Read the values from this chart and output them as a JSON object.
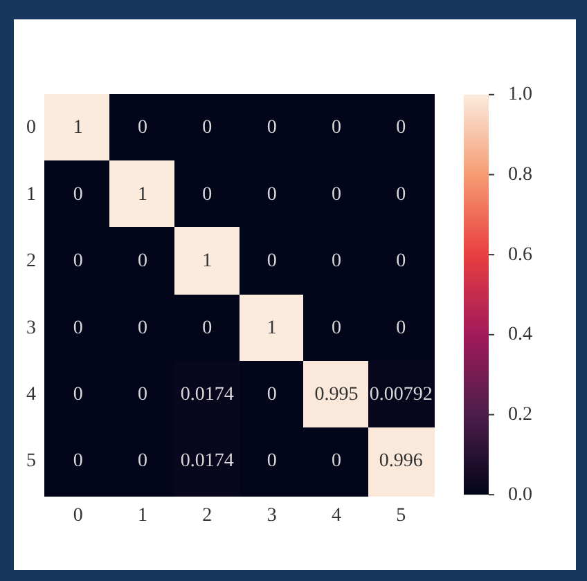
{
  "chart_data": {
    "type": "heatmap",
    "categories": [
      "0",
      "1",
      "2",
      "3",
      "4",
      "5"
    ],
    "y_categories": [
      "0",
      "1",
      "2",
      "3",
      "4",
      "5"
    ],
    "cells": [
      [
        1,
        0,
        0,
        0,
        0,
        0
      ],
      [
        0,
        1,
        0,
        0,
        0,
        0
      ],
      [
        0,
        0,
        1,
        0,
        0,
        0
      ],
      [
        0,
        0,
        0,
        1,
        0,
        0
      ],
      [
        0,
        0,
        0.0174,
        0,
        0.995,
        0.00792
      ],
      [
        0,
        0,
        0.0174,
        0,
        0,
        0.996
      ]
    ],
    "data_labels": true,
    "clim": [
      0,
      1
    ],
    "cticks": [
      {
        "value": 0,
        "label": "0.0"
      },
      {
        "value": 0.2,
        "label": "0.2"
      },
      {
        "value": 0.4,
        "label": "0.4"
      },
      {
        "value": 0.6,
        "label": "0.6"
      },
      {
        "value": 0.8,
        "label": "0.8"
      },
      {
        "value": 1,
        "label": "1.0"
      }
    ]
  }
}
